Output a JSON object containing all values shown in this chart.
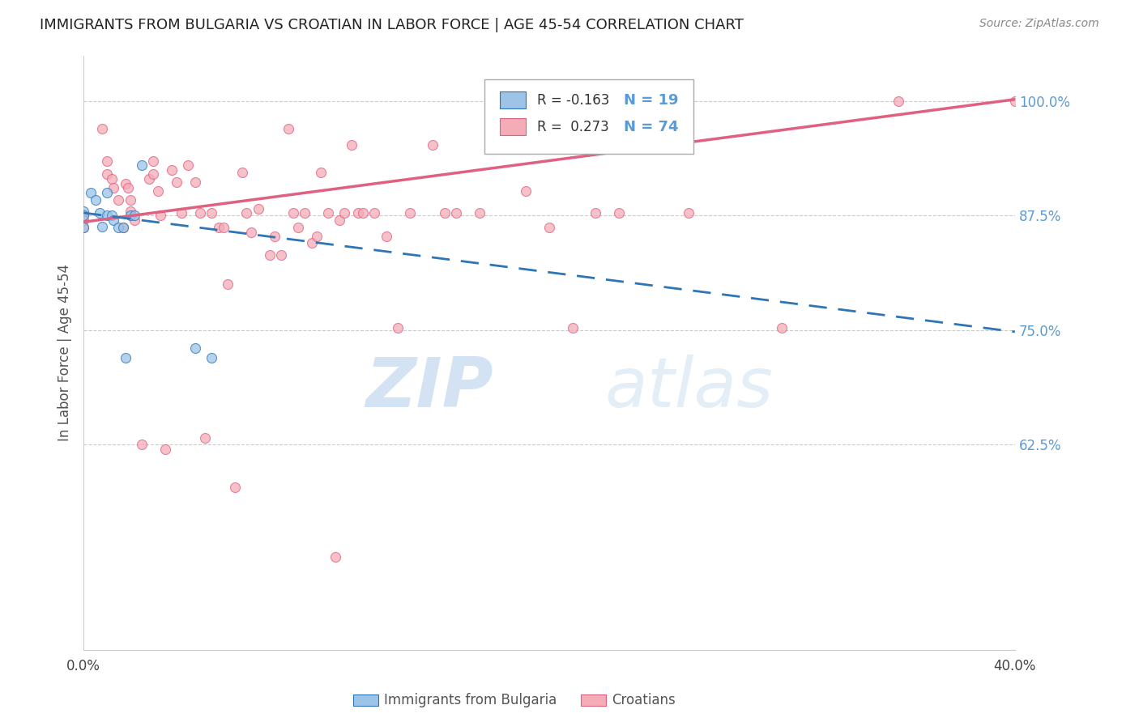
{
  "title": "IMMIGRANTS FROM BULGARIA VS CROATIAN IN LABOR FORCE | AGE 45-54 CORRELATION CHART",
  "source": "Source: ZipAtlas.com",
  "ylabel": "In Labor Force | Age 45-54",
  "xlim": [
    0.0,
    0.4
  ],
  "ylim": [
    0.4,
    1.05
  ],
  "right_axis_color": "#5b9bd5",
  "bulgaria_color": "#9dc3e6",
  "croatian_color": "#f4acb7",
  "bulgaria_line_color": "#2e75b6",
  "croatian_line_color": "#e06080",
  "scatter_alpha": 0.75,
  "marker_size": 75,
  "bulgaria_line_x0": 0.0,
  "bulgaria_line_y0": 0.878,
  "bulgaria_line_x1": 0.4,
  "bulgaria_line_y1": 0.748,
  "croatian_line_x0": 0.0,
  "croatian_line_y0": 0.868,
  "croatian_line_x1": 0.4,
  "croatian_line_y1": 1.002,
  "bulgaria_points_x": [
    0.0,
    0.0,
    0.0,
    0.003,
    0.005,
    0.007,
    0.008,
    0.01,
    0.01,
    0.012,
    0.013,
    0.015,
    0.017,
    0.018,
    0.02,
    0.022,
    0.025,
    0.048,
    0.055
  ],
  "bulgaria_points_y": [
    0.88,
    0.875,
    0.862,
    0.9,
    0.892,
    0.878,
    0.863,
    0.9,
    0.875,
    0.875,
    0.87,
    0.862,
    0.862,
    0.72,
    0.875,
    0.875,
    0.93,
    0.73,
    0.72
  ],
  "croatian_points_x": [
    0.0,
    0.0,
    0.0,
    0.008,
    0.01,
    0.01,
    0.012,
    0.013,
    0.015,
    0.017,
    0.018,
    0.019,
    0.02,
    0.02,
    0.022,
    0.025,
    0.028,
    0.03,
    0.03,
    0.032,
    0.033,
    0.035,
    0.038,
    0.04,
    0.042,
    0.045,
    0.048,
    0.05,
    0.052,
    0.055,
    0.058,
    0.06,
    0.062,
    0.065,
    0.068,
    0.07,
    0.072,
    0.075,
    0.08,
    0.082,
    0.085,
    0.088,
    0.09,
    0.092,
    0.095,
    0.098,
    0.1,
    0.102,
    0.105,
    0.108,
    0.11,
    0.112,
    0.115,
    0.118,
    0.12,
    0.125,
    0.13,
    0.135,
    0.14,
    0.15,
    0.155,
    0.16,
    0.17,
    0.18,
    0.19,
    0.2,
    0.21,
    0.22,
    0.23,
    0.25,
    0.26,
    0.3,
    0.35,
    0.4
  ],
  "croatian_points_y": [
    0.875,
    0.87,
    0.862,
    0.97,
    0.935,
    0.92,
    0.915,
    0.905,
    0.892,
    0.862,
    0.91,
    0.905,
    0.892,
    0.88,
    0.87,
    0.625,
    0.915,
    0.935,
    0.92,
    0.902,
    0.875,
    0.62,
    0.925,
    0.912,
    0.878,
    0.93,
    0.912,
    0.878,
    0.632,
    0.878,
    0.862,
    0.862,
    0.8,
    0.578,
    0.922,
    0.878,
    0.857,
    0.882,
    0.832,
    0.852,
    0.832,
    0.97,
    0.878,
    0.862,
    0.878,
    0.845,
    0.852,
    0.922,
    0.878,
    0.502,
    0.87,
    0.878,
    0.952,
    0.878,
    0.878,
    0.878,
    0.852,
    0.752,
    0.878,
    0.952,
    0.878,
    0.878,
    0.878,
    0.982,
    0.902,
    0.862,
    0.752,
    0.878,
    0.878,
    0.952,
    0.878,
    0.752,
    1.0,
    1.0
  ],
  "watermark_zip": "ZIP",
  "watermark_atlas": "atlas",
  "background_color": "#ffffff",
  "grid_color": "#cccccc",
  "grid_linestyle": "--",
  "ytick_values": [
    0.625,
    0.75,
    0.875,
    1.0
  ],
  "ytick_labels": [
    "62.5%",
    "75.0%",
    "87.5%",
    "100.0%"
  ]
}
